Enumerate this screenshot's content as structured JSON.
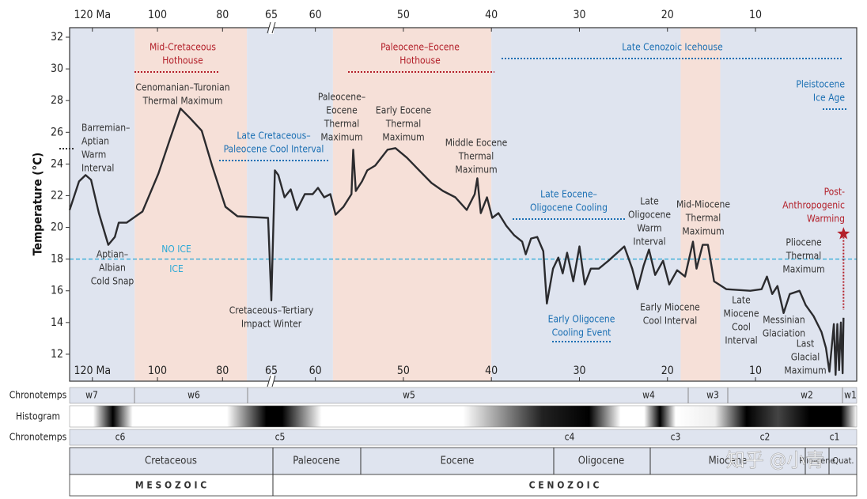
{
  "chart_data": {
    "type": "line",
    "y_label": "Temperature (°C)",
    "ylim": [
      10.3,
      32.6
    ],
    "yticks": [
      12,
      14,
      16,
      18,
      20,
      22,
      24,
      26,
      28,
      30,
      32
    ],
    "xlim": [
      127,
      -1.5
    ],
    "x_break": 65,
    "xticks": [
      {
        "value": 120,
        "label": "120 Ma"
      },
      100,
      80,
      65,
      60,
      50,
      40,
      30,
      20,
      10
    ],
    "bands": [
      {
        "start": 127,
        "end": 107,
        "color": "#dfe4ef"
      },
      {
        "start": 107,
        "end": 72.5,
        "color": "#f6e0d8"
      },
      {
        "start": 72.5,
        "end": 58,
        "color": "#dfe4ef"
      },
      {
        "start": 58,
        "end": 40,
        "color": "#f6e0d8"
      },
      {
        "start": 40,
        "end": 18.5,
        "color": "#dfe4ef"
      },
      {
        "start": 18.5,
        "end": 14,
        "color": "#f6e0d8"
      },
      {
        "start": 14,
        "end": -1.5,
        "color": "#dfe4ef"
      }
    ],
    "color": "#2b2b2e",
    "x": [
      127,
      124.1,
      122.1,
      120.4,
      118,
      115.1,
      113.1,
      111.9,
      109.5,
      104.6,
      99.7,
      96.1,
      92.9,
      90,
      86.4,
      83.2,
      79.1,
      75.4,
      66,
      65,
      64.6,
      64.2,
      63.5,
      62.8,
      62.1,
      61.2,
      60.3,
      59.7,
      59.0,
      58.3,
      57.7,
      56.8,
      55.9,
      55.7,
      55.4,
      54.7,
      54.1,
      53.2,
      51.8,
      50.9,
      49.6,
      48.2,
      46.8,
      45.5,
      44.1,
      42.8,
      41.9,
      41.6,
      41.2,
      40.5,
      39.9,
      39.2,
      38.3,
      37.4,
      36.5,
      36.1,
      35.5,
      34.8,
      34.1,
      33.7,
      33.0,
      32.4,
      31.9,
      31.4,
      30.7,
      30.0,
      29.4,
      28.7,
      27.8,
      26.7,
      24.9,
      24.0,
      23.4,
      22.7,
      22.1,
      21.4,
      20.5,
      19.8,
      18.9,
      18.0,
      17.1,
      16.7,
      16.0,
      15.4,
      14.7,
      13.3,
      10.6,
      9.3,
      8.7,
      8.1,
      7.5,
      6.8,
      6.1,
      5.0,
      4.3,
      3.4,
      2.5,
      2.0,
      1.6,
      1.1,
      0.9,
      0.7,
      0.5,
      0.3,
      0.1,
      0.0
    ],
    "values": [
      21.1,
      22.9,
      23.3,
      23.0,
      20.9,
      18.9,
      19.4,
      20.3,
      20.3,
      21.0,
      23.4,
      25.6,
      27.5,
      26.9,
      26.1,
      23.9,
      21.3,
      20.7,
      20.6,
      15.4,
      23.6,
      23.3,
      21.9,
      22.4,
      21.1,
      22.1,
      22.1,
      22.5,
      21.9,
      22.1,
      20.8,
      21.3,
      22.1,
      24.9,
      22.3,
      22.9,
      23.6,
      23.9,
      24.9,
      25.0,
      24.4,
      23.6,
      22.8,
      22.3,
      21.9,
      21.1,
      22.1,
      23.1,
      20.9,
      21.9,
      20.6,
      20.9,
      20.1,
      19.5,
      19.1,
      18.3,
      19.3,
      19.4,
      18.5,
      15.2,
      17.4,
      18.1,
      17.1,
      18.4,
      16.6,
      18.8,
      16.4,
      17.4,
      17.4,
      17.9,
      18.8,
      17.4,
      16.1,
      17.6,
      18.6,
      17.0,
      17.9,
      16.4,
      17.3,
      16.9,
      19.1,
      17.4,
      18.9,
      18.9,
      16.6,
      16.1,
      16.0,
      16.1,
      16.9,
      15.8,
      16.3,
      14.6,
      15.8,
      16.0,
      15.1,
      14.4,
      13.4,
      12.4,
      10.9,
      13.9,
      10.7,
      13.9,
      11.0,
      14.0,
      10.8,
      14.3
    ],
    "marker": {
      "x": 0,
      "y": 19.6,
      "color": "#b3202a"
    },
    "threshold": {
      "value": 18,
      "color": "#29a8d6",
      "above": "NO ICE",
      "below": "ICE"
    },
    "annotations": [
      {
        "lines": [
          "Mid-Cretaceous",
          "Hothouse"
        ],
        "color": "#b3202a"
      },
      {
        "lines": [
          "Paleocene–Eocene",
          "Hothouse"
        ],
        "color": "#b3202a"
      },
      {
        "lines": [
          "Post-",
          "Anthropogenic",
          "Warming"
        ],
        "color": "#b3202a"
      },
      {
        "lines": [
          "Late Cenozoic Icehouse"
        ],
        "color": "#1a6fb3"
      },
      {
        "lines": [
          "Pleistocene",
          "Ice Age"
        ],
        "color": "#1a6fb3"
      },
      {
        "lines": [
          "Late Cretaceous–",
          "Paleocene Cool Interval"
        ],
        "color": "#1a6fb3"
      },
      {
        "lines": [
          "Late Eocene–",
          "Oligocene Cooling"
        ],
        "color": "#1a6fb3"
      },
      {
        "lines": [
          "Early Oligocene",
          "Cooling Event"
        ],
        "color": "#1a6fb3"
      },
      {
        "lines": [
          "Barremian–",
          "Aptian",
          "Warm",
          "Interval"
        ],
        "color": "#333333"
      },
      {
        "lines": [
          "Aptian–",
          "Albian",
          "Cold Snap"
        ],
        "color": "#333333"
      },
      {
        "lines": [
          "Cenomanian–Turonian",
          "Thermal Maximum"
        ],
        "color": "#333333"
      },
      {
        "lines": [
          "Paleocene–",
          "Eocene",
          "Thermal",
          "Maximum"
        ],
        "color": "#333333"
      },
      {
        "lines": [
          "Early Eocene",
          "Thermal",
          "Maximum"
        ],
        "color": "#333333"
      },
      {
        "lines": [
          "Middle Eocene",
          "Thermal",
          "Maximum"
        ],
        "color": "#333333"
      },
      {
        "lines": [
          "Cretaceous–Tertiary",
          "Impact Winter"
        ],
        "color": "#333333"
      },
      {
        "lines": [
          "Late",
          "Oligocene",
          "Warm",
          "Interval"
        ],
        "color": "#333333"
      },
      {
        "lines": [
          "Mid-Miocene",
          "Thermal",
          "Maximum"
        ],
        "color": "#333333"
      },
      {
        "lines": [
          "Early Miocene",
          "Cool Interval"
        ],
        "color": "#333333"
      },
      {
        "lines": [
          "Late",
          "Miocene",
          "Cool",
          "Interval"
        ],
        "color": "#333333"
      },
      {
        "lines": [
          "Pliocene",
          "Thermal",
          "Maximum"
        ],
        "color": "#333333"
      },
      {
        "lines": [
          "Messinian",
          "Glaciation"
        ],
        "color": "#333333"
      },
      {
        "lines": [
          "Last",
          "Glacial",
          "Maximum"
        ],
        "color": "#333333"
      }
    ],
    "rows": {
      "chronotemps_w": {
        "label": "Chronotemps",
        "items": [
          "w7",
          "w6",
          "w5",
          "w4",
          "w3",
          "w2",
          "w1"
        ]
      },
      "histogram": {
        "label": "Histogram"
      },
      "chronotemps_c": {
        "label": "Chronotemps",
        "items": [
          "c6",
          "c5",
          "c4",
          "c3",
          "c2",
          "c1"
        ]
      },
      "periods": [
        "Cretaceous",
        "Paleocene",
        "Eocene",
        "Oligocene",
        "Miocene",
        "Plio-cene",
        "Quat."
      ],
      "eras": [
        "M E S O Z O I C",
        "C E N O Z O I C"
      ]
    },
    "watermark": "知乎 @小青"
  }
}
